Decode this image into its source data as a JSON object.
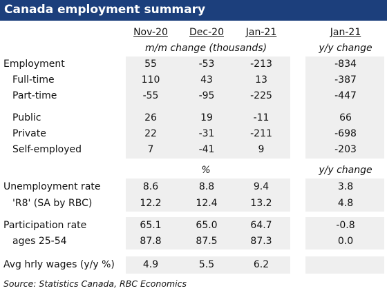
{
  "header": {
    "title": "Canada employment summary"
  },
  "table": {
    "columns": [
      "Nov-20",
      "Dec-20",
      "Jan-21"
    ],
    "yoy_column": "Jan-21",
    "sections": [
      {
        "unit": "m/m change (thousands)",
        "yoy_unit": "y/y change",
        "rows": [
          {
            "label": "Employment",
            "values": [
              "55",
              "-53",
              "-213"
            ],
            "yoy": "-834"
          },
          {
            "label": "Full-time",
            "values": [
              "110",
              "43",
              "13"
            ],
            "yoy": "-387"
          },
          {
            "label": "Part-time",
            "values": [
              "-55",
              "-95",
              "-225"
            ],
            "yoy": "-447"
          },
          {
            "label": "Public",
            "values": [
              "26",
              "19",
              "-11"
            ],
            "yoy": "66"
          },
          {
            "label": "Private",
            "values": [
              "22",
              "-31",
              "-211"
            ],
            "yoy": "-698"
          },
          {
            "label": "Self-employed",
            "values": [
              "7",
              "-41",
              "9"
            ],
            "yoy": "-203"
          }
        ]
      },
      {
        "unit": "%",
        "yoy_unit": "y/y change",
        "rows": [
          {
            "label": "Unemployment rate",
            "values": [
              "8.6",
              "8.8",
              "9.4"
            ],
            "yoy": "3.8"
          },
          {
            "label": "'R8' (SA by RBC)",
            "values": [
              "12.2",
              "12.4",
              "13.2"
            ],
            "yoy": "4.8"
          },
          {
            "label": "Participation rate",
            "values": [
              "65.1",
              "65.0",
              "64.7"
            ],
            "yoy": "-0.8"
          },
          {
            "label": "ages 25-54",
            "values": [
              "87.8",
              "87.5",
              "87.3"
            ],
            "yoy": "0.0"
          },
          {
            "label": "Avg hrly wages (y/y %)",
            "values": [
              "4.9",
              "5.5",
              "6.2"
            ]
          }
        ]
      }
    ]
  },
  "footer": {
    "source": "Source:  Statistics Canada, RBC Economics"
  }
}
